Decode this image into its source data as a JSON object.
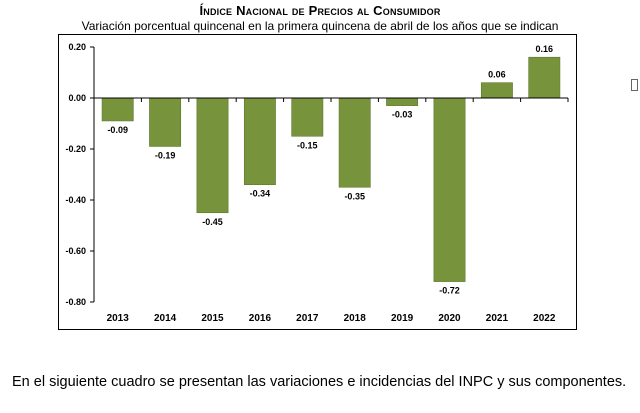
{
  "header": {
    "title": "Índice Nacional de Precios al Consumidor",
    "subtitle": "Variación porcentual quincenal en la primera quincena de abril de los años que se indican"
  },
  "caption": "En el siguiente cuadro se presentan las variaciones e incidencias del INPC y sus componentes.",
  "colors": {
    "bar": "#77933C",
    "bar_edge": "#5C7A2A"
  },
  "chart_data": {
    "type": "bar",
    "title": "Índice Nacional de Precios al Consumidor",
    "subtitle": "Variación porcentual quincenal en la primera quincena de abril de los años que se indican",
    "categories": [
      "2013",
      "2014",
      "2015",
      "2016",
      "2017",
      "2018",
      "2019",
      "2020",
      "2021",
      "2022"
    ],
    "values": [
      -0.09,
      -0.19,
      -0.45,
      -0.34,
      -0.15,
      -0.35,
      -0.03,
      -0.72,
      0.06,
      0.16
    ],
    "value_labels": [
      "-0.09",
      "-0.19",
      "-0.45",
      "-0.34",
      "-0.15",
      "-0.35",
      "-0.03",
      "-0.72",
      "0.06",
      "0.16"
    ],
    "ylim": [
      -0.8,
      0.2
    ],
    "yticks": [
      0.2,
      0.0,
      -0.2,
      -0.4,
      -0.6,
      -0.8
    ],
    "ytick_labels": [
      "0.20",
      "0.00",
      "-0.20",
      "-0.40",
      "-0.60",
      "-0.80"
    ],
    "grid": false,
    "legend": "none"
  }
}
